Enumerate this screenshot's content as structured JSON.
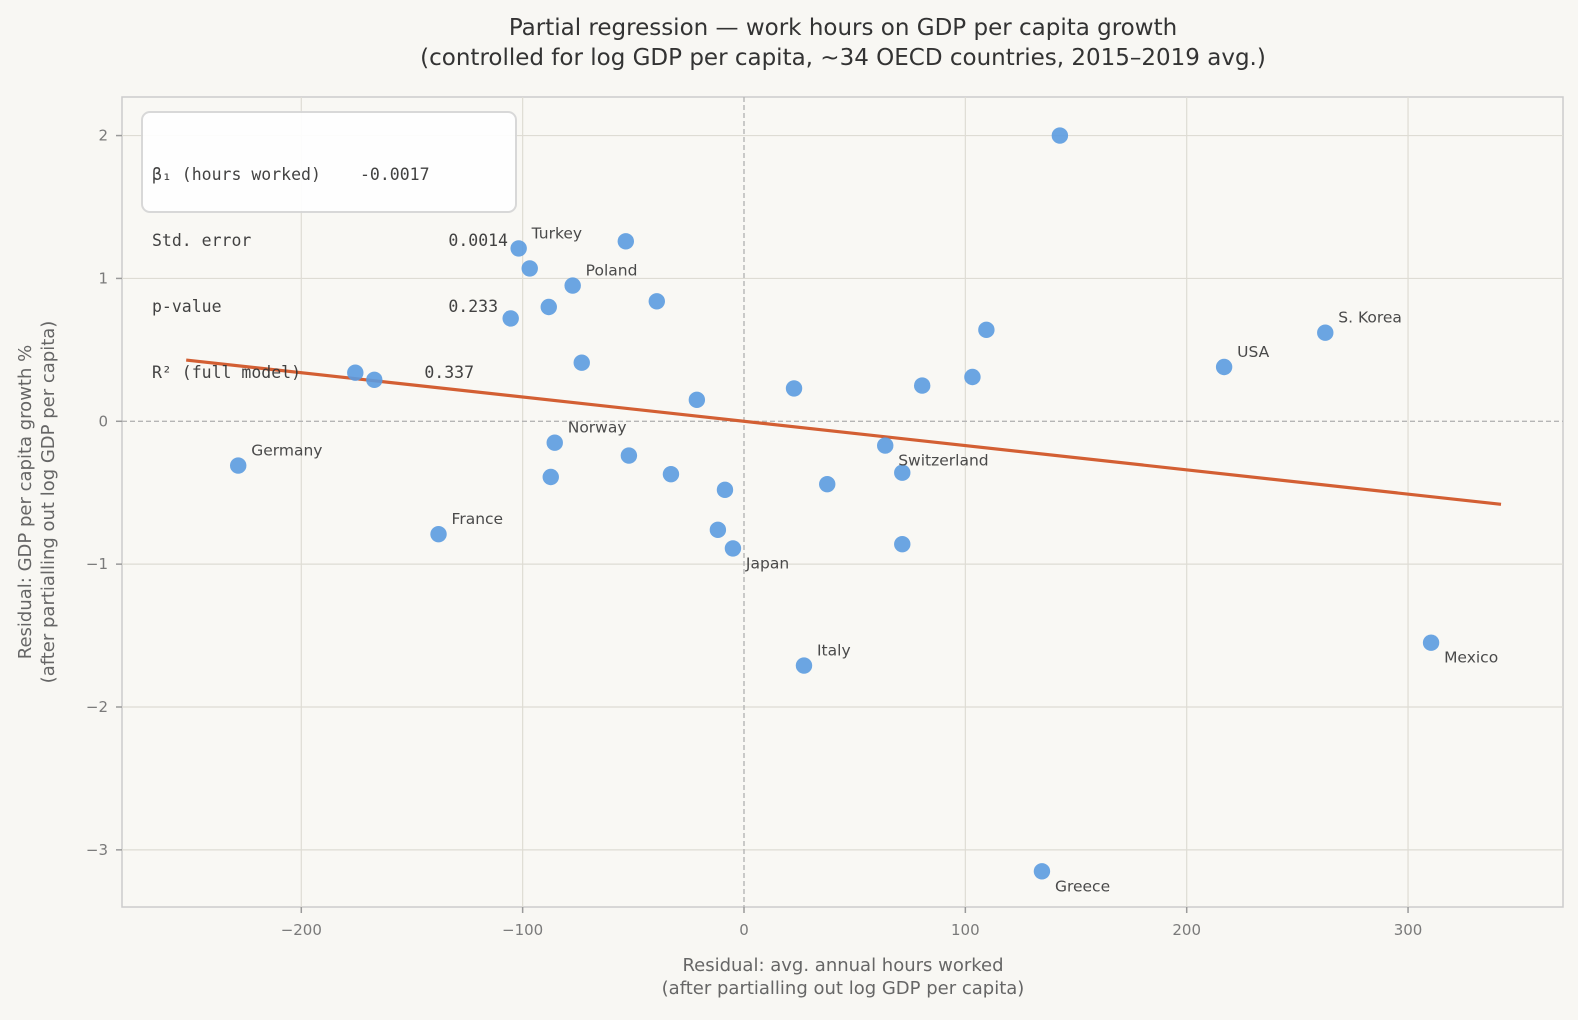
{
  "chart_data": {
    "type": "scatter",
    "title": "Partial regression — work hours on GDP per capita growth",
    "subtitle": "(controlled for log GDP per capita, ~34 OECD countries, 2015–2019 avg.)",
    "xlabel": "Residual: avg. annual hours worked",
    "xlabel2": "(after partialling out log GDP per capita)",
    "ylabel": "Residual: GDP per capita growth %",
    "ylabel2": "(after partialling out log GDP per capita)",
    "xlim": [
      -281,
      370
    ],
    "ylim": [
      -3.4,
      2.27
    ],
    "xticks": [
      -200,
      -100,
      0,
      100,
      200,
      300
    ],
    "xtick_labels": [
      "−200",
      "−100",
      "0",
      "100",
      "200",
      "300"
    ],
    "yticks": [
      -3,
      -2,
      -1,
      0,
      1,
      2
    ],
    "ytick_labels": [
      "−3",
      "−2",
      "−1",
      "0",
      "1",
      "2"
    ],
    "grid": true,
    "reference_lines": {
      "x": 0,
      "y": 0
    },
    "colors": {
      "points": "#5b9be0",
      "fit_line": "#d35f33",
      "grid": "#dedcd4",
      "ref_line": "#b5b5b5"
    },
    "points": [
      {
        "x": -228.5,
        "y": -0.31,
        "label": "Germany",
        "label_pos": "upper-right"
      },
      {
        "x": -175.6,
        "y": 0.34,
        "label": ""
      },
      {
        "x": -167.0,
        "y": 0.29,
        "label": ""
      },
      {
        "x": -138.0,
        "y": -0.79,
        "label": "France",
        "label_pos": "upper-right"
      },
      {
        "x": -105.4,
        "y": 0.72,
        "label": ""
      },
      {
        "x": -101.8,
        "y": 1.21,
        "label": "Turkey",
        "label_pos": "upper-right"
      },
      {
        "x": -96.8,
        "y": 1.07,
        "label": ""
      },
      {
        "x": -88.2,
        "y": 0.8,
        "label": ""
      },
      {
        "x": -87.3,
        "y": -0.39,
        "label": ""
      },
      {
        "x": -85.5,
        "y": -0.15,
        "label": "Norway",
        "label_pos": "upper-right"
      },
      {
        "x": -77.4,
        "y": 0.95,
        "label": "Poland",
        "label_pos": "upper-right"
      },
      {
        "x": -73.3,
        "y": 0.41,
        "label": ""
      },
      {
        "x": -53.4,
        "y": 1.26,
        "label": ""
      },
      {
        "x": -52.0,
        "y": -0.24,
        "label": ""
      },
      {
        "x": -39.4,
        "y": 0.84,
        "label": ""
      },
      {
        "x": -33.0,
        "y": -0.37,
        "label": ""
      },
      {
        "x": -21.3,
        "y": 0.15,
        "label": ""
      },
      {
        "x": -11.8,
        "y": -0.76,
        "label": ""
      },
      {
        "x": -8.6,
        "y": -0.48,
        "label": ""
      },
      {
        "x": -5.0,
        "y": -0.89,
        "label": "Japan",
        "label_pos": "lower-right"
      },
      {
        "x": 22.6,
        "y": 0.23,
        "label": ""
      },
      {
        "x": 27.1,
        "y": -1.71,
        "label": "Italy",
        "label_pos": "upper-right"
      },
      {
        "x": 37.6,
        "y": -0.44,
        "label": ""
      },
      {
        "x": 63.8,
        "y": -0.17,
        "label": "Switzerland",
        "label_pos": "lower-right"
      },
      {
        "x": 71.5,
        "y": -0.36,
        "label": ""
      },
      {
        "x": 71.5,
        "y": -0.86,
        "label": ""
      },
      {
        "x": 80.5,
        "y": 0.25,
        "label": ""
      },
      {
        "x": 103.2,
        "y": 0.31,
        "label": ""
      },
      {
        "x": 109.5,
        "y": 0.64,
        "label": ""
      },
      {
        "x": 134.6,
        "y": -3.15,
        "label": "Greece",
        "label_pos": "lower-right"
      },
      {
        "x": 142.7,
        "y": 2.0,
        "label": ""
      },
      {
        "x": 216.9,
        "y": 0.38,
        "label": "USA",
        "label_pos": "upper-right"
      },
      {
        "x": 262.6,
        "y": 0.62,
        "label": "S. Korea",
        "label_pos": "upper-right"
      },
      {
        "x": 310.4,
        "y": -1.55,
        "label": "Mexico",
        "label_pos": "lower-right"
      }
    ],
    "fit_line": {
      "slope": -0.0017,
      "intercept": 0.0,
      "x_range": [
        -252,
        342
      ]
    },
    "stats_box": {
      "position": "top-left",
      "rows": [
        {
          "key": "β₁ (hours worked)",
          "value": "-0.0017"
        },
        {
          "key": "Std. error",
          "value": "0.0014"
        },
        {
          "key": "p-value",
          "value": "0.233"
        },
        {
          "key": "R² (full model)",
          "value": "0.337"
        }
      ]
    }
  }
}
